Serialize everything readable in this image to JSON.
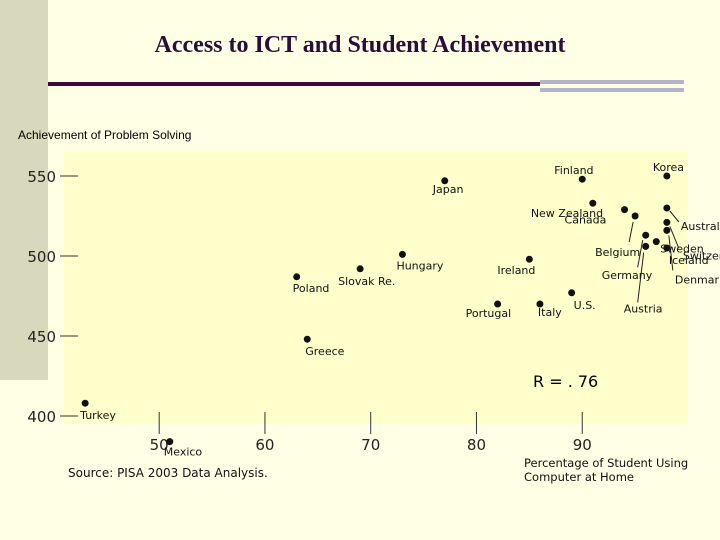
{
  "colors": {
    "background": "#ffffe5",
    "plot_background": "#ffffcc",
    "rule": "#3b0a3b"
  },
  "page_title": "Access to ICT and Student Achievement",
  "source": "Source: PISA 2003 Data Analysis.",
  "correlation": "R = . 76",
  "chart_data": {
    "type": "scatter",
    "title": "Access to ICT and Student Achievement",
    "ylabel": "Achievement of Problem Solving",
    "xlabel": "Percentage of Student Using Computer at Home",
    "xlim": [
      41,
      100
    ],
    "ylim": [
      395,
      565
    ],
    "x_ticks": [
      50,
      60,
      70,
      80,
      90
    ],
    "y_ticks": [
      550,
      500,
      450,
      400
    ],
    "grid": false,
    "points": [
      {
        "label": "Turkey",
        "x": 43,
        "y": 408
      },
      {
        "label": "Mexico",
        "x": 51,
        "y": 384
      },
      {
        "label": "Greece",
        "x": 64,
        "y": 448
      },
      {
        "label": "Poland",
        "x": 63,
        "y": 487
      },
      {
        "label": "Slovak Re.",
        "x": 69,
        "y": 492
      },
      {
        "label": "Hungary",
        "x": 73,
        "y": 501
      },
      {
        "label": "Japan",
        "x": 77,
        "y": 547
      },
      {
        "label": "Portugal",
        "x": 82,
        "y": 470
      },
      {
        "label": "Ireland",
        "x": 85,
        "y": 498
      },
      {
        "label": "Italy",
        "x": 86,
        "y": 470
      },
      {
        "label": "U.S.",
        "x": 89,
        "y": 477
      },
      {
        "label": "Finland",
        "x": 90,
        "y": 548
      },
      {
        "label": "New Zealand",
        "x": 91,
        "y": 533
      },
      {
        "label": "Canada",
        "x": 94,
        "y": 529
      },
      {
        "label": "Belgium",
        "x": 95,
        "y": 525
      },
      {
        "label": "Germany",
        "x": 96,
        "y": 513
      },
      {
        "label": "Korea",
        "x": 98,
        "y": 550
      },
      {
        "label": "Australia",
        "x": 98,
        "y": 530
      },
      {
        "label": "Sweden",
        "x": 97,
        "y": 509
      },
      {
        "label": "Iceland",
        "x": 98,
        "y": 505
      },
      {
        "label": "Switzerland",
        "x": 98,
        "y": 521
      },
      {
        "label": "Denmark",
        "x": 98,
        "y": 516
      },
      {
        "label": "Austria",
        "x": 96,
        "y": 506
      }
    ]
  }
}
